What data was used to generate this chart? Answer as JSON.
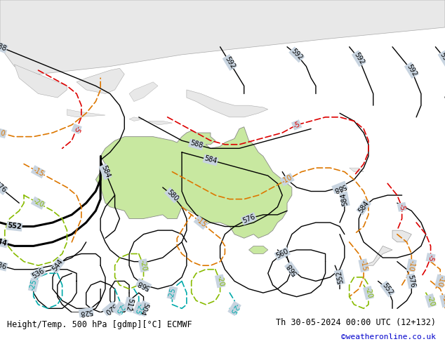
{
  "title_left": "Height/Temp. 500 hPa [gdmp][°C] ECMWF",
  "title_right": "Th 30-05-2024 00:00 UTC (12+132)",
  "credit": "©weatheronline.co.uk",
  "bg_color": "#e8e8e8",
  "land_color": "#e8e8e8",
  "aus_color": "#c8e8a0",
  "ocean_color": "#c8d4e0",
  "bottom_bg": "#d8d8d8",
  "fig_width": 6.34,
  "fig_height": 4.9,
  "dpi": 100,
  "title_fontsize": 8.5,
  "credit_color": "#0000cc"
}
